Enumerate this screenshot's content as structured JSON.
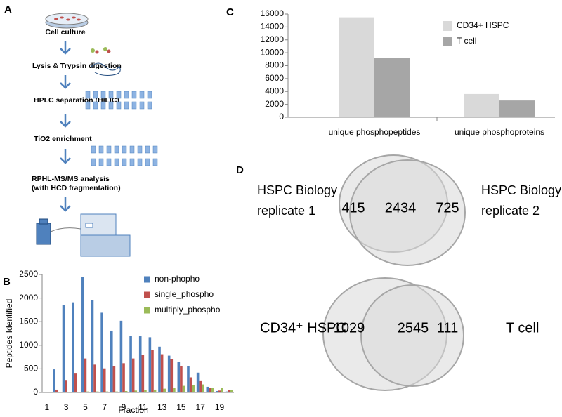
{
  "panel_labels": [
    "A",
    "B",
    "C",
    "D"
  ],
  "workflow": {
    "steps": [
      "Cell culture",
      "Lysis & Trypsin digestion",
      "HPLC separation (HILIC)",
      "TiO2 enrichment",
      "RPHL-MS/MS analysis",
      "(with HCD fragmentation)"
    ]
  },
  "chart_data": [
    {
      "type": "bar",
      "xlabel": "Fraction",
      "ylabel": "Peptides Identified",
      "categories": [
        "1",
        null,
        "3",
        null,
        "5",
        null,
        "7",
        null,
        "9",
        null,
        "11",
        null,
        "13",
        null,
        "15",
        null,
        "17",
        null,
        "19",
        null
      ],
      "series": [
        {
          "name": "non-phopho",
          "color": "#4f81bd",
          "values": [
            0,
            490,
            1850,
            1910,
            2450,
            1950,
            1690,
            1310,
            1520,
            1200,
            1190,
            1170,
            970,
            780,
            640,
            560,
            420,
            120,
            30,
            20
          ]
        },
        {
          "name": "single_phospho",
          "color": "#c0504d",
          "values": [
            0,
            60,
            250,
            400,
            720,
            590,
            510,
            560,
            620,
            720,
            790,
            900,
            810,
            700,
            560,
            320,
            240,
            100,
            40,
            50
          ]
        },
        {
          "name": "multiply_phospho",
          "color": "#9bbb59",
          "values": [
            0,
            10,
            10,
            10,
            20,
            20,
            20,
            20,
            30,
            40,
            50,
            60,
            80,
            100,
            140,
            160,
            170,
            100,
            90,
            50
          ]
        }
      ],
      "ylim": [
        0,
        2500
      ],
      "yticks": [
        0,
        500,
        1000,
        1500,
        2000,
        2500
      ],
      "legend": "upper right"
    },
    {
      "type": "bar",
      "categories": [
        "unique phosphopeptides",
        "unique phosphoproteins"
      ],
      "series": [
        {
          "name": "CD34+ HSPC",
          "color": "#d9d9d9",
          "values": [
            15500,
            3600
          ]
        },
        {
          "name": "T cell",
          "color": "#a6a6a6",
          "values": [
            9200,
            2600
          ]
        }
      ],
      "ylim": [
        0,
        16000
      ],
      "yticks": [
        0,
        2000,
        4000,
        6000,
        8000,
        10000,
        12000,
        14000,
        16000
      ],
      "legend": "upper right"
    }
  ],
  "venn_diagrams": [
    {
      "left_label": [
        "HSPC Biology",
        "replicate 1"
      ],
      "right_label": [
        "HSPC Biology",
        "replicate 2"
      ],
      "left_only": 415,
      "overlap": 2434,
      "right_only": 725
    },
    {
      "left_label": [
        "CD34⁺ HSPC"
      ],
      "right_label": [
        "T cell"
      ],
      "left_only": 1029,
      "overlap": 2545,
      "right_only": 111
    }
  ]
}
